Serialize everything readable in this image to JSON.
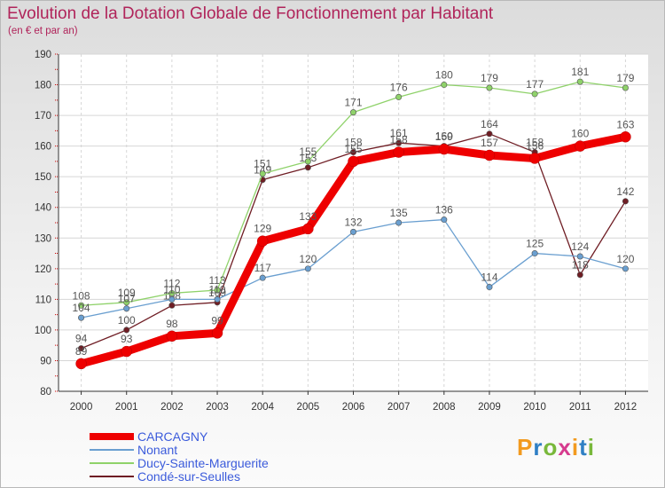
{
  "header": {
    "title": "Evolution de la Dotation Globale de Fonctionnement par Habitant",
    "subtitle": "(en € et par an)"
  },
  "logo": {
    "letters": [
      "P",
      "r",
      "o",
      "x",
      "i",
      "t",
      "i"
    ],
    "colors": [
      "#f29a1f",
      "#2f7fc4",
      "#79b83b",
      "#d63b8e",
      "#f29a1f",
      "#2f7fc4",
      "#79b83b"
    ]
  },
  "chart_data": {
    "type": "line",
    "title": "Evolution de la Dotation Globale de Fonctionnement par Habitant",
    "subtitle": "(en € et par an)",
    "xlabel": "",
    "ylabel": "",
    "categories": [
      "2000",
      "2001",
      "2002",
      "2003",
      "2004",
      "2005",
      "2006",
      "2007",
      "2008",
      "2009",
      "2010",
      "2011",
      "2012"
    ],
    "ylim": [
      80,
      190
    ],
    "yticks": [
      80,
      90,
      100,
      110,
      120,
      130,
      140,
      150,
      160,
      170,
      180,
      190
    ],
    "grid": true,
    "legend_position": "bottom-left",
    "series": [
      {
        "name": "Condé-sur-Seulles",
        "color": "#6f1d24",
        "values": [
          94,
          100,
          108,
          109,
          149,
          153,
          158,
          161,
          160,
          164,
          158,
          118,
          142
        ]
      },
      {
        "name": "Ducy-Sainte-Marguerite",
        "color": "#8fd26a",
        "values": [
          108,
          109,
          112,
          113,
          151,
          155,
          171,
          176,
          180,
          179,
          177,
          181,
          179
        ]
      },
      {
        "name": "Nonant",
        "color": "#6a9fd0",
        "values": [
          104,
          107,
          110,
          110,
          117,
          120,
          132,
          135,
          136,
          114,
          125,
          124,
          120
        ]
      },
      {
        "name": "CARCAGNY",
        "color": "#ee0000",
        "values": [
          89,
          93,
          98,
          99,
          129,
          133,
          155,
          158,
          159,
          157,
          156,
          160,
          163
        ]
      }
    ],
    "legend": [
      "CARCAGNY",
      "Nonant",
      "Ducy-Sainte-Marguerite",
      "Condé-sur-Seulles"
    ]
  }
}
